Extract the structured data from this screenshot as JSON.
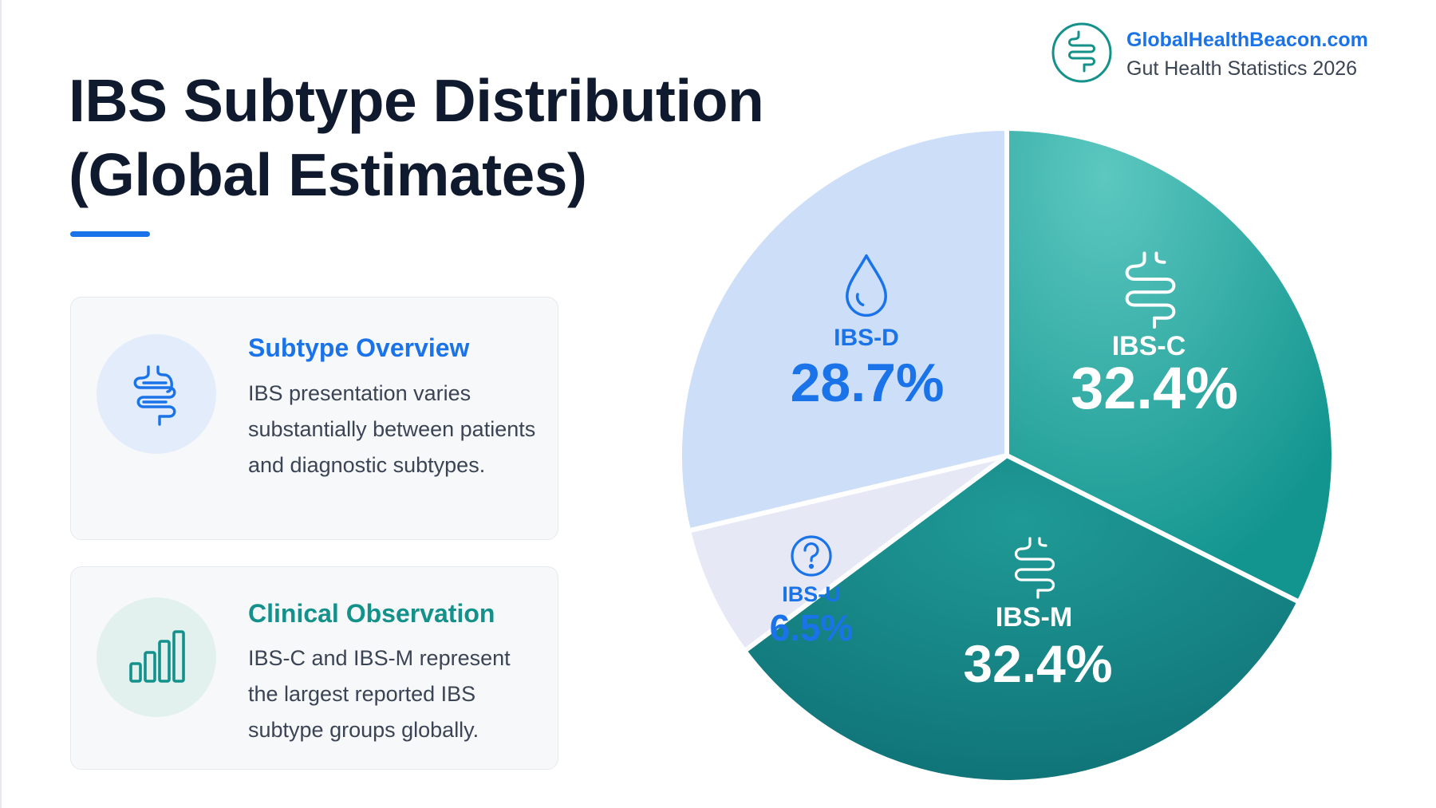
{
  "brand": {
    "name": "GlobalHealthBeacon.com",
    "subtitle": "Gut Health Statistics 2026",
    "logo_icon": "intestine-icon",
    "color": "#13918a"
  },
  "header": {
    "title_line1": "IBS Subtype Distribution",
    "title_line2": "(Global Estimates)",
    "accent_color": "#1a73e8"
  },
  "cards": [
    {
      "heading": "Subtype Overview",
      "body": "IBS presentation varies substantially between patients and diagnostic subtypes.",
      "icon": "intestine-icon"
    },
    {
      "heading": "Clinical Observation",
      "body": "IBS-C and IBS-M represent the largest reported IBS subtype groups globally.",
      "icon": "bar-chart-icon"
    }
  ],
  "chart_data": {
    "type": "pie",
    "title": "IBS Subtype Distribution (Global Estimates)",
    "slices": [
      {
        "label": "IBS-C",
        "value": 32.4,
        "display": "32.4%",
        "icon": "intestine-icon",
        "color": "#1e9e97",
        "text_color": "#ffffff"
      },
      {
        "label": "IBS-M",
        "value": 32.4,
        "display": "32.4%",
        "icon": "intestine-icon",
        "color": "#168584",
        "text_color": "#ffffff"
      },
      {
        "label": "IBS-U",
        "value": 6.5,
        "display": "6.5%",
        "icon": "question-circle-icon",
        "color": "#e6e9f5",
        "text_color": "#1a73e8"
      },
      {
        "label": "IBS-D",
        "value": 28.7,
        "display": "28.7%",
        "icon": "water-drop-icon",
        "color": "#cddff8",
        "text_color": "#1a73e8"
      }
    ],
    "start_angle_deg": 0,
    "direction": "clockwise",
    "legend": "none"
  }
}
